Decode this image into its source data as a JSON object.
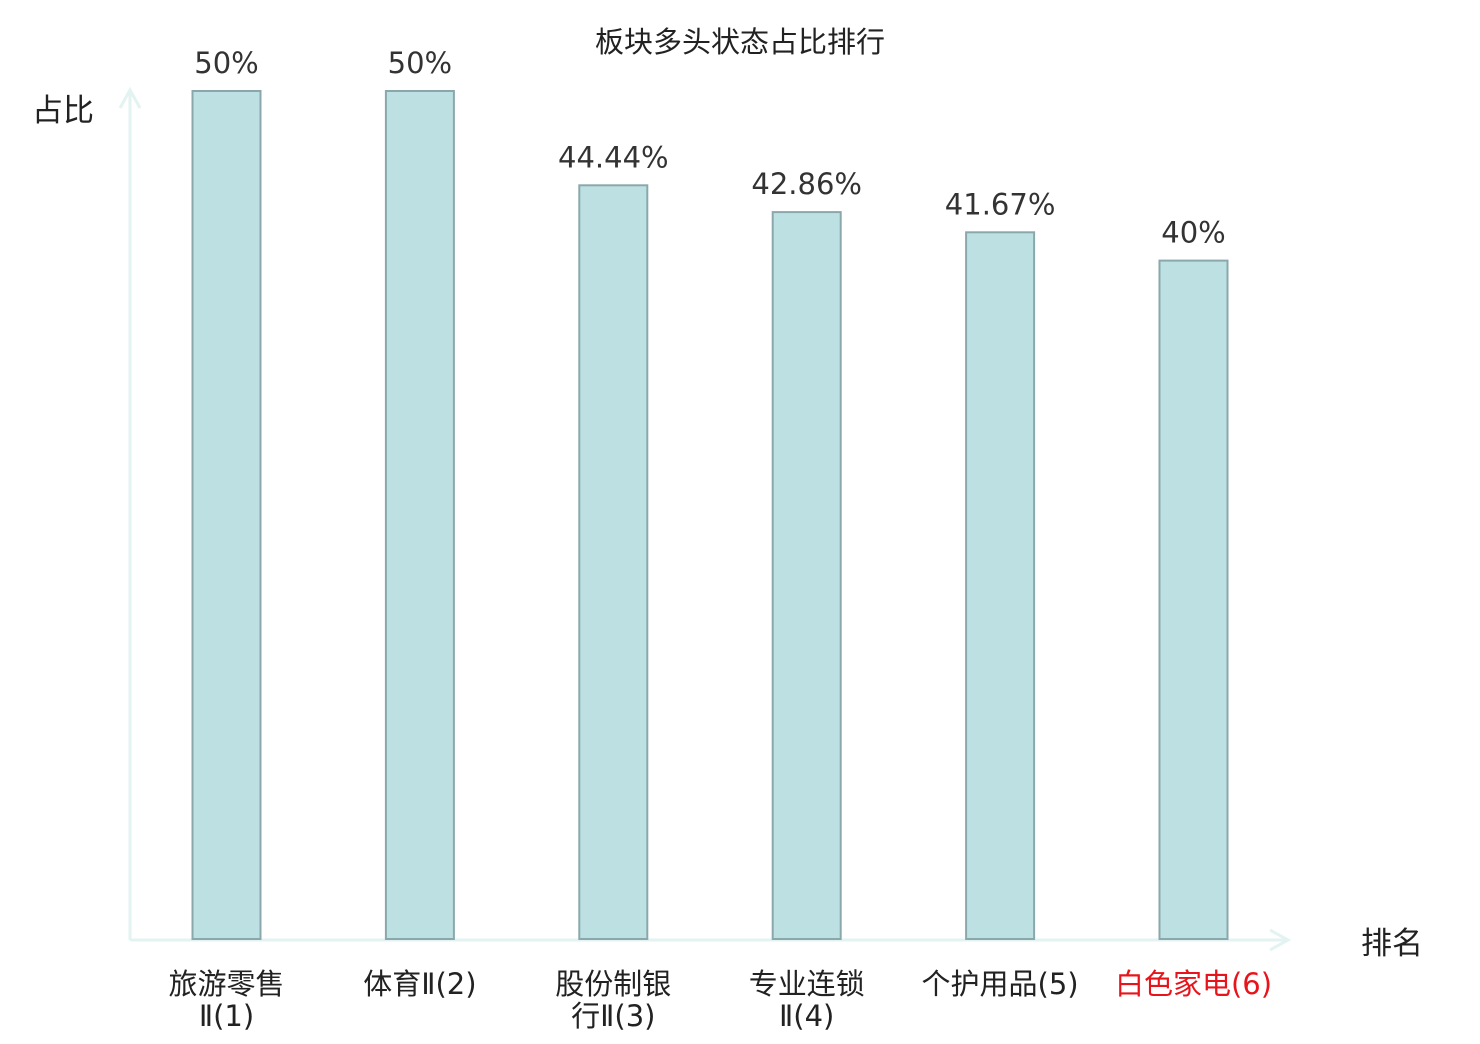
{
  "chart_data": {
    "type": "bar",
    "title": "板块多头状态占比排行",
    "xlabel": "排名",
    "ylabel": "占比",
    "categories": [
      [
        "旅游零售",
        "Ⅱ(1)"
      ],
      [
        "体育Ⅱ(2)"
      ],
      [
        "股份制银",
        "行Ⅱ(3)"
      ],
      [
        "专业连锁",
        "Ⅱ(4)"
      ],
      [
        "个护用品(5)"
      ],
      [
        "白色家电(6)"
      ]
    ],
    "values": [
      50,
      50,
      44.44,
      42.86,
      41.67,
      40
    ],
    "value_labels": [
      "50%",
      "50%",
      "44.44%",
      "42.86%",
      "41.67%",
      "40%"
    ],
    "highlight_index": 5,
    "ylim": [
      0,
      50
    ],
    "grid": false,
    "colors": {
      "bar_fill": "#bde1e3",
      "bar_stroke": "#8aa8ab",
      "axis": "#e3f3f1",
      "text": "#333333",
      "highlight_text": "#e8141b"
    }
  }
}
